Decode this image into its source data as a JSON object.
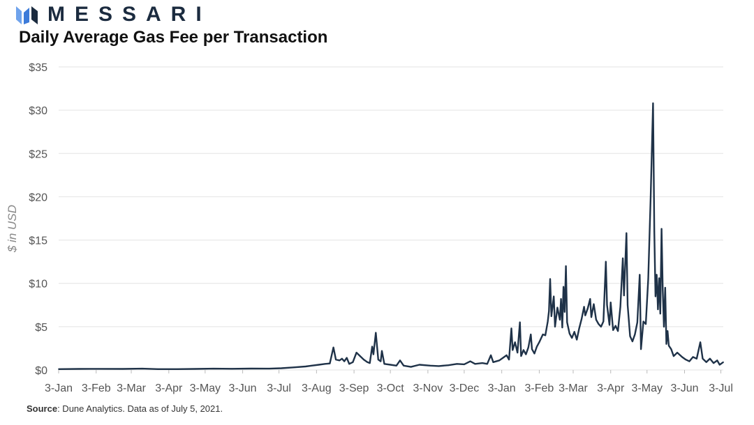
{
  "header": {
    "brand_name": "MESSARI",
    "brand_icon": "messari-logo-icon",
    "title": "Daily Average Gas Fee per Transaction"
  },
  "footer": {
    "source_label": "Source",
    "source_text": ": Dune Analytics. Data as of July 5, 2021."
  },
  "colors": {
    "line": "#1f3248",
    "grid": "#e3e3e3",
    "brand": "#1b2b3f",
    "brand_accent": "#3d7bd9"
  },
  "chart_data": {
    "type": "line",
    "title": "Daily Average Gas Fee per Transaction",
    "ylabel": "$ in USD",
    "ylim": [
      0,
      35
    ],
    "yticks": [
      0,
      5,
      10,
      15,
      20,
      25,
      30,
      35
    ],
    "ytick_labels": [
      "$0",
      "$5",
      "$10",
      "$15",
      "$20",
      "$25",
      "$30",
      "$35"
    ],
    "xlim": [
      "2020-01-03",
      "2021-07-05"
    ],
    "xtick_labels": [
      "3-Jan",
      "3-Feb",
      "3-Mar",
      "3-Apr",
      "3-May",
      "3-Jun",
      "3-Jul",
      "3-Aug",
      "3-Sep",
      "3-Oct",
      "3-Nov",
      "3-Dec",
      "3-Jan",
      "3-Feb",
      "3-Mar",
      "3-Apr",
      "3-May",
      "3-Jun",
      "3-Jul"
    ],
    "xtick_dates": [
      "2020-01-03",
      "2020-02-03",
      "2020-03-03",
      "2020-04-03",
      "2020-05-03",
      "2020-06-03",
      "2020-07-03",
      "2020-08-03",
      "2020-09-03",
      "2020-10-03",
      "2020-11-03",
      "2020-12-03",
      "2021-01-03",
      "2021-02-03",
      "2021-03-03",
      "2021-04-03",
      "2021-05-03",
      "2021-06-03",
      "2021-07-03"
    ],
    "grid": true,
    "legend": "none",
    "series": [
      {
        "points": [
          [
            "2020-01-03",
            0.1
          ],
          [
            "2020-01-20",
            0.12
          ],
          [
            "2020-02-05",
            0.13
          ],
          [
            "2020-02-25",
            0.12
          ],
          [
            "2020-03-12",
            0.15
          ],
          [
            "2020-03-25",
            0.1
          ],
          [
            "2020-04-10",
            0.1
          ],
          [
            "2020-04-25",
            0.12
          ],
          [
            "2020-05-10",
            0.15
          ],
          [
            "2020-05-25",
            0.14
          ],
          [
            "2020-06-10",
            0.16
          ],
          [
            "2020-06-25",
            0.15
          ],
          [
            "2020-07-05",
            0.2
          ],
          [
            "2020-07-15",
            0.3
          ],
          [
            "2020-07-25",
            0.4
          ],
          [
            "2020-07-30",
            0.5
          ],
          [
            "2020-08-05",
            0.6
          ],
          [
            "2020-08-10",
            0.7
          ],
          [
            "2020-08-14",
            0.75
          ],
          [
            "2020-08-17",
            2.6
          ],
          [
            "2020-08-19",
            1.2
          ],
          [
            "2020-08-22",
            1.1
          ],
          [
            "2020-08-24",
            1.3
          ],
          [
            "2020-08-26",
            1.0
          ],
          [
            "2020-08-28",
            1.4
          ],
          [
            "2020-08-30",
            0.7
          ],
          [
            "2020-09-02",
            0.9
          ],
          [
            "2020-09-05",
            2.0
          ],
          [
            "2020-09-08",
            1.6
          ],
          [
            "2020-09-11",
            1.2
          ],
          [
            "2020-09-14",
            0.9
          ],
          [
            "2020-09-16",
            0.8
          ],
          [
            "2020-09-18",
            2.7
          ],
          [
            "2020-09-19",
            1.8
          ],
          [
            "2020-09-21",
            4.3
          ],
          [
            "2020-09-23",
            1.2
          ],
          [
            "2020-09-25",
            1.0
          ],
          [
            "2020-09-26",
            2.2
          ],
          [
            "2020-09-28",
            0.7
          ],
          [
            "2020-10-03",
            0.6
          ],
          [
            "2020-10-08",
            0.5
          ],
          [
            "2020-10-11",
            1.1
          ],
          [
            "2020-10-14",
            0.5
          ],
          [
            "2020-10-20",
            0.35
          ],
          [
            "2020-10-27",
            0.6
          ],
          [
            "2020-11-05",
            0.5
          ],
          [
            "2020-11-12",
            0.45
          ],
          [
            "2020-11-20",
            0.55
          ],
          [
            "2020-11-27",
            0.7
          ],
          [
            "2020-12-03",
            0.65
          ],
          [
            "2020-12-08",
            1.0
          ],
          [
            "2020-12-12",
            0.7
          ],
          [
            "2020-12-18",
            0.8
          ],
          [
            "2020-12-22",
            0.7
          ],
          [
            "2020-12-25",
            1.7
          ],
          [
            "2020-12-27",
            0.9
          ],
          [
            "2021-01-01",
            1.1
          ],
          [
            "2021-01-04",
            1.4
          ],
          [
            "2021-01-07",
            1.7
          ],
          [
            "2021-01-09",
            1.2
          ],
          [
            "2021-01-11",
            4.8
          ],
          [
            "2021-01-12",
            2.3
          ],
          [
            "2021-01-14",
            3.2
          ],
          [
            "2021-01-16",
            2.0
          ],
          [
            "2021-01-18",
            5.5
          ],
          [
            "2021-01-19",
            1.6
          ],
          [
            "2021-01-21",
            2.3
          ],
          [
            "2021-01-23",
            1.8
          ],
          [
            "2021-01-25",
            2.6
          ],
          [
            "2021-01-27",
            4.1
          ],
          [
            "2021-01-28",
            2.4
          ],
          [
            "2021-01-30",
            1.9
          ],
          [
            "2021-02-01",
            2.7
          ],
          [
            "2021-02-03",
            3.2
          ],
          [
            "2021-02-06",
            4.1
          ],
          [
            "2021-02-08",
            4.0
          ],
          [
            "2021-02-10",
            5.6
          ],
          [
            "2021-02-11",
            6.8
          ],
          [
            "2021-02-12",
            10.5
          ],
          [
            "2021-02-13",
            6.2
          ],
          [
            "2021-02-15",
            8.5
          ],
          [
            "2021-02-16",
            5.0
          ],
          [
            "2021-02-18",
            7.2
          ],
          [
            "2021-02-20",
            5.8
          ],
          [
            "2021-02-21",
            8.2
          ],
          [
            "2021-02-22",
            4.9
          ],
          [
            "2021-02-23",
            9.6
          ],
          [
            "2021-02-24",
            6.7
          ],
          [
            "2021-02-25",
            12.0
          ],
          [
            "2021-02-26",
            5.5
          ],
          [
            "2021-02-28",
            4.2
          ],
          [
            "2021-03-02",
            3.7
          ],
          [
            "2021-03-04",
            4.4
          ],
          [
            "2021-03-06",
            3.5
          ],
          [
            "2021-03-08",
            4.8
          ],
          [
            "2021-03-10",
            5.9
          ],
          [
            "2021-03-12",
            7.3
          ],
          [
            "2021-03-13",
            6.3
          ],
          [
            "2021-03-15",
            7.1
          ],
          [
            "2021-03-17",
            8.2
          ],
          [
            "2021-03-18",
            6.1
          ],
          [
            "2021-03-20",
            7.6
          ],
          [
            "2021-03-22",
            5.8
          ],
          [
            "2021-03-24",
            5.3
          ],
          [
            "2021-03-26",
            5.0
          ],
          [
            "2021-03-28",
            5.6
          ],
          [
            "2021-03-30",
            12.5
          ],
          [
            "2021-03-31",
            7.5
          ],
          [
            "2021-04-02",
            5.2
          ],
          [
            "2021-04-03",
            7.8
          ],
          [
            "2021-04-05",
            4.6
          ],
          [
            "2021-04-07",
            5.1
          ],
          [
            "2021-04-09",
            4.5
          ],
          [
            "2021-04-11",
            7.3
          ],
          [
            "2021-04-13",
            12.9
          ],
          [
            "2021-04-14",
            8.6
          ],
          [
            "2021-04-16",
            15.8
          ],
          [
            "2021-04-17",
            7.5
          ],
          [
            "2021-04-19",
            3.9
          ],
          [
            "2021-04-21",
            3.3
          ],
          [
            "2021-04-23",
            4.1
          ],
          [
            "2021-04-25",
            5.5
          ],
          [
            "2021-04-27",
            11.0
          ],
          [
            "2021-04-28",
            2.4
          ],
          [
            "2021-04-30",
            5.6
          ],
          [
            "2021-05-02",
            5.3
          ],
          [
            "2021-05-04",
            10.5
          ],
          [
            "2021-05-06",
            20.0
          ],
          [
            "2021-05-08",
            30.8
          ],
          [
            "2021-05-09",
            16.0
          ],
          [
            "2021-05-10",
            8.5
          ],
          [
            "2021-05-11",
            11.0
          ],
          [
            "2021-05-12",
            7.0
          ],
          [
            "2021-05-13",
            10.6
          ],
          [
            "2021-05-14",
            6.5
          ],
          [
            "2021-05-15",
            16.3
          ],
          [
            "2021-05-16",
            9.2
          ],
          [
            "2021-05-17",
            5.0
          ],
          [
            "2021-05-18",
            9.5
          ],
          [
            "2021-05-19",
            3.0
          ],
          [
            "2021-05-20",
            4.5
          ],
          [
            "2021-05-21",
            2.8
          ],
          [
            "2021-05-23",
            2.4
          ],
          [
            "2021-05-25",
            1.6
          ],
          [
            "2021-05-28",
            2.0
          ],
          [
            "2021-06-01",
            1.5
          ],
          [
            "2021-06-04",
            1.2
          ],
          [
            "2021-06-07",
            1.0
          ],
          [
            "2021-06-10",
            1.5
          ],
          [
            "2021-06-13",
            1.3
          ],
          [
            "2021-06-16",
            3.2
          ],
          [
            "2021-06-18",
            1.3
          ],
          [
            "2021-06-21",
            0.9
          ],
          [
            "2021-06-24",
            1.3
          ],
          [
            "2021-06-27",
            0.8
          ],
          [
            "2021-06-30",
            1.1
          ],
          [
            "2021-07-02",
            0.6
          ],
          [
            "2021-07-05",
            0.9
          ]
        ]
      }
    ]
  }
}
